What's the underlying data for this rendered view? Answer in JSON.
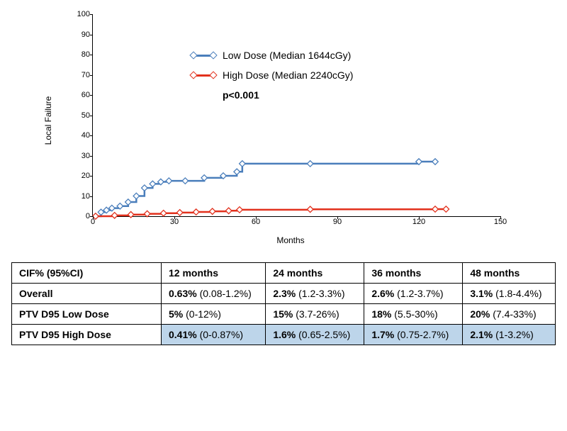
{
  "chart": {
    "type": "step-line",
    "ylabel": "Local Failure",
    "xlabel": "Months",
    "xlim": [
      0,
      150
    ],
    "ylim": [
      0,
      100
    ],
    "xticks": [
      0,
      30,
      60,
      90,
      120,
      150
    ],
    "yticks": [
      0,
      10,
      20,
      30,
      40,
      50,
      60,
      70,
      80,
      90,
      100
    ],
    "background_color": "#ffffff",
    "legend": {
      "items": [
        {
          "label": "Low Dose (Median 1644cGy)",
          "color": "#4a7ebb"
        },
        {
          "label": "High Dose (Median 2240cGy)",
          "color": "#e2311d"
        }
      ],
      "p_value": "p<0.001"
    },
    "series": [
      {
        "name": "low-dose",
        "color": "#4a7ebb",
        "line_width": 2.5,
        "marker": "diamond",
        "points": [
          [
            1,
            0
          ],
          [
            3,
            2
          ],
          [
            5,
            3
          ],
          [
            7,
            4
          ],
          [
            10,
            5
          ],
          [
            13,
            7
          ],
          [
            16,
            10
          ],
          [
            19,
            14
          ],
          [
            22,
            16
          ],
          [
            25,
            17
          ],
          [
            28,
            17.5
          ],
          [
            34,
            17.5
          ],
          [
            41,
            19
          ],
          [
            48,
            20
          ],
          [
            53,
            22
          ],
          [
            55,
            26
          ],
          [
            80,
            26
          ],
          [
            120,
            27
          ],
          [
            126,
            27
          ]
        ],
        "censor_x": [
          6,
          9,
          12,
          15,
          18,
          21,
          24,
          27,
          38,
          45,
          50,
          52,
          54
        ]
      },
      {
        "name": "high-dose",
        "color": "#e2311d",
        "line_width": 2.5,
        "marker": "diamond",
        "points": [
          [
            1,
            0
          ],
          [
            8,
            0.4
          ],
          [
            14,
            0.8
          ],
          [
            20,
            1.2
          ],
          [
            26,
            1.5
          ],
          [
            32,
            1.8
          ],
          [
            38,
            2.1
          ],
          [
            44,
            2.4
          ],
          [
            50,
            2.7
          ],
          [
            54,
            3.2
          ],
          [
            80,
            3.4
          ],
          [
            126,
            3.5
          ],
          [
            130,
            3.5
          ]
        ],
        "censor_x": [
          5,
          10,
          15,
          20,
          25,
          30,
          35,
          40,
          45,
          50,
          53,
          55,
          58
        ]
      }
    ]
  },
  "table": {
    "columns": [
      "CIF% (95%CI)",
      "12 months",
      "24 months",
      "36 months",
      "48 months"
    ],
    "rows": [
      {
        "label": "Overall",
        "highlight": false,
        "cells": [
          [
            "0.63%",
            " (0.08-1.2%)"
          ],
          [
            "2.3%",
            " (1.2-3.3%)"
          ],
          [
            "2.6%",
            " (1.2-3.7%)"
          ],
          [
            "3.1%",
            " (1.8-4.4%)"
          ]
        ]
      },
      {
        "label": "PTV D95 Low Dose",
        "highlight": false,
        "cells": [
          [
            "5%",
            " (0-12%)"
          ],
          [
            "15%",
            " (3.7-26%)"
          ],
          [
            "18%",
            " (5.5-30%)"
          ],
          [
            "20%",
            " (7.4-33%)"
          ]
        ]
      },
      {
        "label": "PTV D95 High Dose",
        "highlight": true,
        "cells": [
          [
            "0.41%",
            " (0-0.87%)"
          ],
          [
            "1.6%",
            " (0.65-2.5%)"
          ],
          [
            "1.7%",
            " (0.75-2.7%)"
          ],
          [
            "2.1%",
            " (1-3.2%)"
          ]
        ]
      }
    ]
  }
}
